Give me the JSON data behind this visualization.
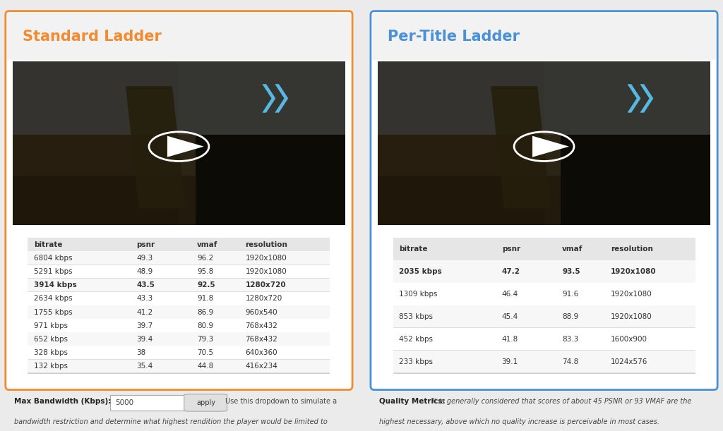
{
  "left_title": "Standard Ladder",
  "right_title": "Per-Title Ladder",
  "left_title_color": "#F28A30",
  "right_title_color": "#4A90D9",
  "left_border_color": "#F28A30",
  "right_border_color": "#4A90D9",
  "bg_color": "#EBEBEB",
  "panel_bg": "#FFFFFF",
  "standard_table": {
    "headers": [
      "bitrate",
      "psnr",
      "vmaf",
      "resolution"
    ],
    "rows": [
      [
        "6804 kbps",
        "49.3",
        "96.2",
        "1920x1080"
      ],
      [
        "5291 kbps",
        "48.9",
        "95.8",
        "1920x1080"
      ],
      [
        "3914 kbps",
        "43.5",
        "92.5",
        "1280x720"
      ],
      [
        "2634 kbps",
        "43.3",
        "91.8",
        "1280x720"
      ],
      [
        "1755 kbps",
        "41.2",
        "86.9",
        "960x540"
      ],
      [
        "971 kbps",
        "39.7",
        "80.9",
        "768x432"
      ],
      [
        "652 kbps",
        "39.4",
        "79.3",
        "768x432"
      ],
      [
        "328 kbps",
        "38",
        "70.5",
        "640x360"
      ],
      [
        "132 kbps",
        "35.4",
        "44.8",
        "416x234"
      ]
    ],
    "bold_row": 2
  },
  "pertitle_table": {
    "headers": [
      "bitrate",
      "psnr",
      "vmaf",
      "resolution"
    ],
    "rows": [
      [
        "2035 kbps",
        "47.2",
        "93.5",
        "1920x1080"
      ],
      [
        "1309 kbps",
        "46.4",
        "91.6",
        "1920x1080"
      ],
      [
        "853 kbps",
        "45.4",
        "88.9",
        "1920x1080"
      ],
      [
        "452 kbps",
        "41.8",
        "83.3",
        "1600x900"
      ],
      [
        "233 kbps",
        "39.1",
        "74.8",
        "1024x576"
      ]
    ],
    "bold_row": 0
  },
  "bottom_left_label": "Max Bandwidth (Kbps):",
  "bottom_left_value": "5000",
  "bottom_left_button": "apply",
  "bottom_left_text1": "Use this dropdown to simulate a",
  "bottom_left_text2": "bandwidth restriction and determine what highest rendition the player would be limited to",
  "bottom_right_label": "Quality Metrics:",
  "bottom_right_text1": "It is generally considered that scores of about 45 PSNR or 93 VMAF are the",
  "bottom_right_text2": "highest necessary, above which no quality increase is perceivable in most cases.",
  "arrow_color": "#5BC8F5",
  "image_bg_color": "#2A2010"
}
